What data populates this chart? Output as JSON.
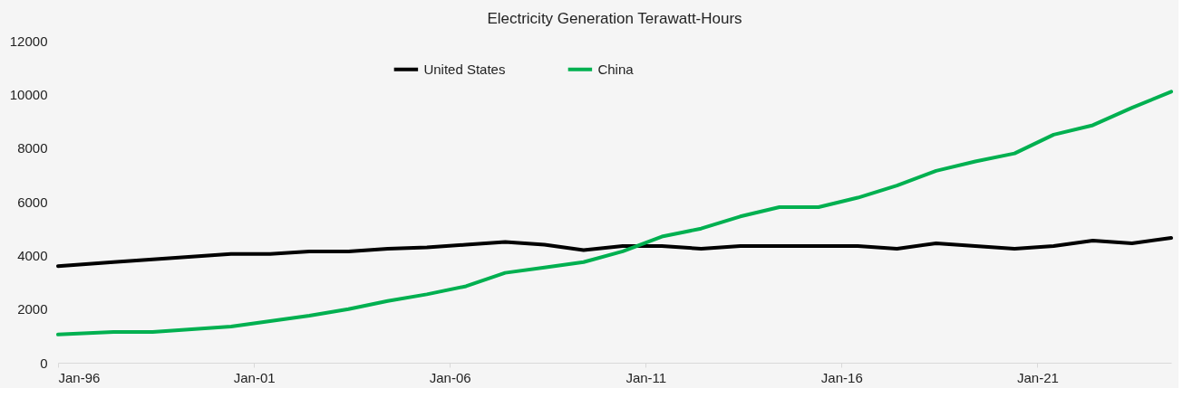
{
  "chart_data": {
    "type": "line",
    "title": "Electricity Generation Terawatt-Hours",
    "x": [
      "1996-01",
      "1997-06",
      "1998-06",
      "1999-06",
      "2000-06",
      "2001-06",
      "2002-06",
      "2003-06",
      "2004-06",
      "2005-06",
      "2006-06",
      "2007-06",
      "2008-06",
      "2009-06",
      "2010-06",
      "2011-06",
      "2012-06",
      "2013-06",
      "2014-06",
      "2015-06",
      "2016-06",
      "2017-06",
      "2018-06",
      "2019-06",
      "2020-06",
      "2021-06",
      "2022-06",
      "2023-06",
      "2024-06"
    ],
    "series": [
      {
        "name": "United States",
        "color": "#000000",
        "values": [
          3600,
          3750,
          3850,
          3950,
          4050,
          4050,
          4150,
          4150,
          4250,
          4300,
          4400,
          4500,
          4400,
          4200,
          4350,
          4350,
          4250,
          4350,
          4350,
          4350,
          4350,
          4250,
          4450,
          4350,
          4250,
          4350,
          4550,
          4450,
          4650
        ]
      },
      {
        "name": "China",
        "color": "#00b050",
        "values": [
          1050,
          1150,
          1150,
          1250,
          1350,
          1550,
          1750,
          2000,
          2300,
          2550,
          2850,
          3350,
          3550,
          3750,
          4150,
          4700,
          5000,
          5450,
          5800,
          5800,
          6150,
          6600,
          7150,
          7500,
          7800,
          8500,
          8850,
          9500,
          10100
        ]
      }
    ],
    "xlim": [
      "1996-01",
      "2024-06"
    ],
    "xticks": [
      {
        "value": "1996-01",
        "label": "Jan-96"
      },
      {
        "value": "2001-01",
        "label": "Jan-01"
      },
      {
        "value": "2006-01",
        "label": "Jan-06"
      },
      {
        "value": "2011-01",
        "label": "Jan-11"
      },
      {
        "value": "2016-01",
        "label": "Jan-16"
      },
      {
        "value": "2021-01",
        "label": "Jan-21"
      }
    ],
    "ylim": [
      0,
      12000
    ],
    "yticks": [
      0,
      2000,
      4000,
      6000,
      8000,
      10000,
      12000
    ],
    "grid": false,
    "legend": "top",
    "marker": "none",
    "line_style": "solid"
  }
}
